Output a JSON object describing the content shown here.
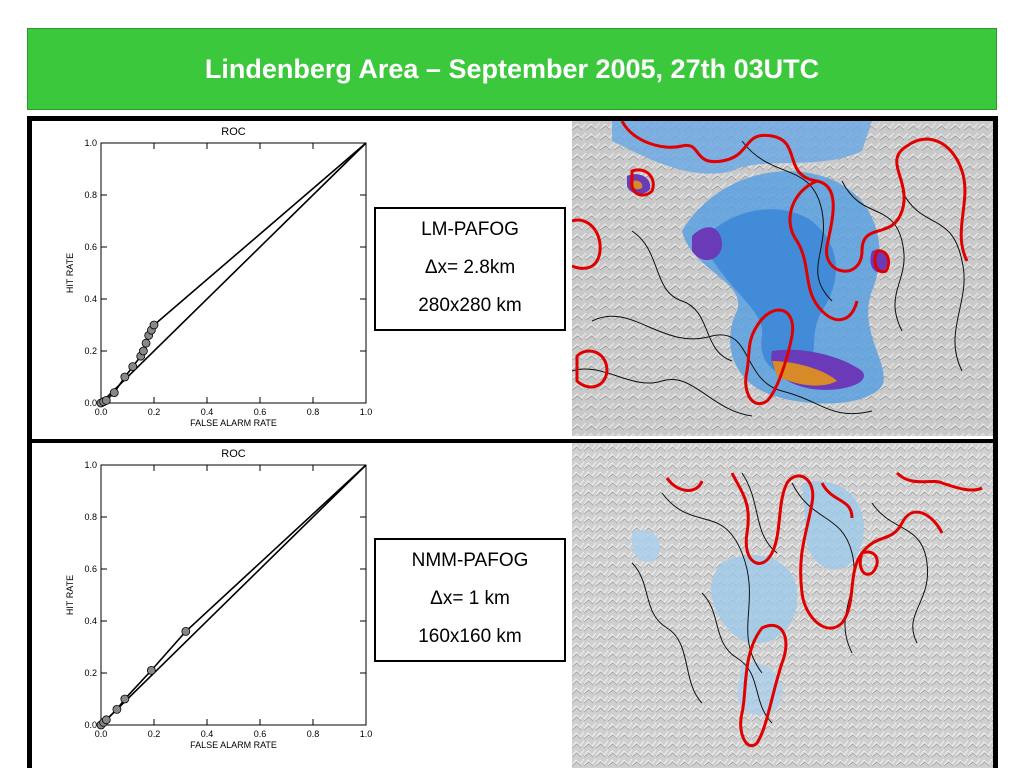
{
  "slide": {
    "title": "Lindenberg Area – September 2005, 27th 03UTC"
  },
  "colors": {
    "title_bar": "#3cc83c",
    "frame": "#000000",
    "contour_red": "#e00000",
    "fog_blue": "#3a86d8",
    "fog_purple": "#6a3ab8",
    "fog_orange": "#d88a28"
  },
  "panels": [
    {
      "model": "LM-PAFOG",
      "resolution": "Δx= 2.8km",
      "domain": "280x280 km"
    },
    {
      "model": "NMM-PAFOG",
      "resolution": "Δx= 1 km",
      "domain": "160x160 km"
    }
  ],
  "chart_data": [
    {
      "type": "line",
      "title": "ROC",
      "xlabel": "FALSE ALARM RATE",
      "ylabel": "HIT RATE",
      "xlim": [
        0,
        1
      ],
      "ylim": [
        0,
        1
      ],
      "xticks": [
        "0.0",
        "0.2",
        "0.4",
        "0.6",
        "0.8",
        "1.0"
      ],
      "yticks": [
        "0.0",
        "0.2",
        "0.4",
        "0.6",
        "0.8",
        "1.0"
      ],
      "grid": false,
      "series": [
        {
          "x": [
            0.0,
            0.01,
            0.02,
            0.05,
            0.09,
            0.12,
            0.15,
            0.16,
            0.17,
            0.18,
            0.19,
            0.2
          ],
          "y": [
            0.0,
            0.005,
            0.01,
            0.04,
            0.1,
            0.14,
            0.18,
            0.2,
            0.23,
            0.26,
            0.28,
            0.3
          ]
        }
      ]
    },
    {
      "type": "line",
      "title": "ROC",
      "xlabel": "FALSE ALARM RATE",
      "ylabel": "HIT RATE",
      "xlim": [
        0,
        1
      ],
      "ylim": [
        0,
        1
      ],
      "xticks": [
        "0.0",
        "0.2",
        "0.4",
        "0.6",
        "0.8",
        "1.0"
      ],
      "yticks": [
        "0.0",
        "0.2",
        "0.4",
        "0.6",
        "0.8",
        "1.0"
      ],
      "grid": false,
      "series": [
        {
          "x": [
            0.0,
            0.01,
            0.02,
            0.06,
            0.09,
            0.19,
            0.32
          ],
          "y": [
            0.0,
            0.01,
            0.02,
            0.06,
            0.1,
            0.21,
            0.36
          ]
        }
      ]
    }
  ]
}
